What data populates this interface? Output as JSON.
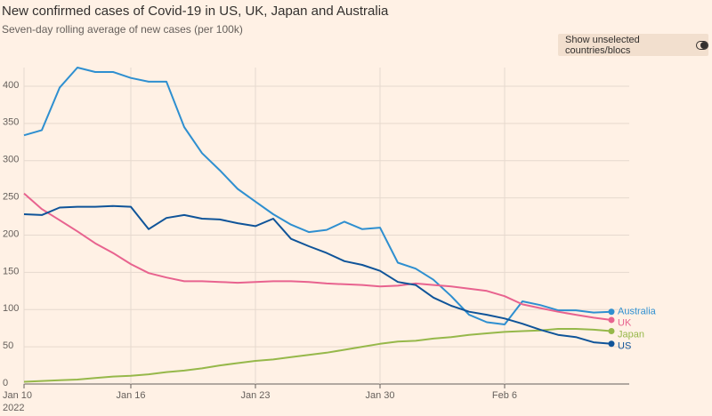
{
  "chart_data": {
    "type": "line",
    "title": "New confirmed cases of Covid-19 in US, UK, Japan and Australia",
    "subtitle": "Seven-day rolling average of new cases (per 100k)",
    "toggle_label": "Show unselected countries/blocs",
    "x": [
      "2022-01-10",
      "2022-01-11",
      "2022-01-12",
      "2022-01-13",
      "2022-01-14",
      "2022-01-15",
      "2022-01-16",
      "2022-01-17",
      "2022-01-18",
      "2022-01-19",
      "2022-01-20",
      "2022-01-21",
      "2022-01-22",
      "2022-01-23",
      "2022-01-24",
      "2022-01-25",
      "2022-01-26",
      "2022-01-27",
      "2022-01-28",
      "2022-01-29",
      "2022-01-30",
      "2022-01-31",
      "2022-02-01",
      "2022-02-02",
      "2022-02-03",
      "2022-02-04",
      "2022-02-05",
      "2022-02-06",
      "2022-02-07",
      "2022-02-08",
      "2022-02-09",
      "2022-02-10",
      "2022-02-11",
      "2022-02-12"
    ],
    "xlim": [
      "2022-01-10",
      "2022-02-13"
    ],
    "xticks": [
      {
        "value": "2022-01-10",
        "label": "Jan 10"
      },
      {
        "value": "2022-01-16",
        "label": "Jan 16"
      },
      {
        "value": "2022-01-23",
        "label": "Jan 23"
      },
      {
        "value": "2022-01-30",
        "label": "Jan 30"
      },
      {
        "value": "2022-02-06",
        "label": "Feb 6"
      }
    ],
    "x_year_label": "2022",
    "ylim": [
      0,
      425
    ],
    "yticks": [
      0,
      50,
      100,
      150,
      200,
      250,
      300,
      350,
      400
    ],
    "grid": true,
    "series": [
      {
        "name": "Australia",
        "color": "#2e8fd0",
        "values": [
          334,
          341,
          398,
          425,
          419,
          419,
          411,
          406,
          406,
          345,
          310,
          287,
          262,
          245,
          228,
          214,
          204,
          207,
          218,
          208,
          210,
          163,
          155,
          140,
          118,
          93,
          83,
          80,
          111,
          106,
          99,
          99,
          96,
          97
        ]
      },
      {
        "name": "UK",
        "color": "#e8638f",
        "values": [
          256,
          235,
          220,
          205,
          189,
          176,
          161,
          149,
          143,
          138,
          138,
          137,
          136,
          137,
          138,
          138,
          137,
          135,
          134,
          133,
          131,
          132,
          135,
          133,
          131,
          128,
          125,
          118,
          107,
          102,
          97,
          93,
          89,
          86
        ]
      },
      {
        "name": "Japan",
        "color": "#96b84a",
        "values": [
          3,
          4,
          5,
          6,
          8,
          10,
          11,
          13,
          16,
          18,
          21,
          25,
          28,
          31,
          33,
          36,
          39,
          42,
          46,
          50,
          54,
          57,
          58,
          61,
          63,
          66,
          68,
          70,
          71,
          72,
          74,
          74,
          73,
          71
        ]
      },
      {
        "name": "US",
        "color": "#0f5499",
        "values": [
          228,
          227,
          237,
          238,
          238,
          239,
          238,
          208,
          223,
          227,
          222,
          221,
          216,
          212,
          222,
          195,
          185,
          176,
          165,
          160,
          152,
          137,
          133,
          116,
          105,
          97,
          93,
          88,
          81,
          73,
          66,
          63,
          56,
          54
        ]
      }
    ]
  }
}
